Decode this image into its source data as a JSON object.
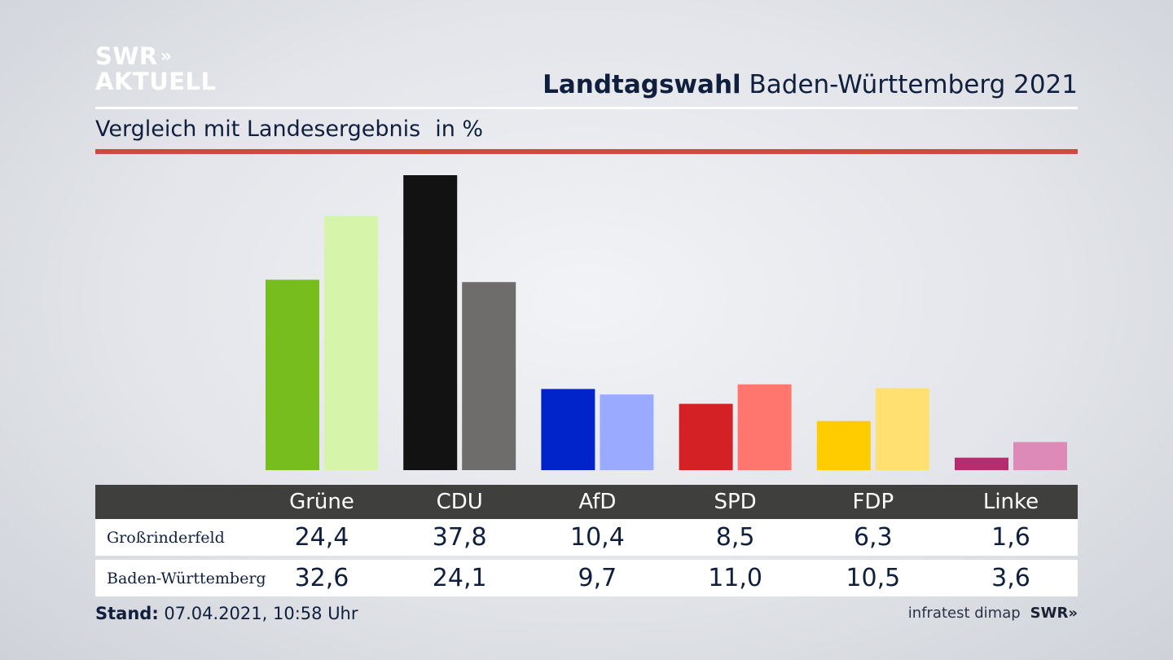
{
  "brand": {
    "line1": "SWR",
    "chevrons": "»",
    "line2": "AKTUELL"
  },
  "header": {
    "title_bold": "Landtagswahl",
    "title_rest": "Baden-Württemberg 2021"
  },
  "subtitle": {
    "text": "Vergleich mit Landesergebnis",
    "unit": "in %"
  },
  "colors": {
    "accent_rule": "#cf4a3c",
    "table_header": "#3f3f3d"
  },
  "chart_data": {
    "type": "bar",
    "categories": [
      "Grüne",
      "CDU",
      "AfD",
      "SPD",
      "FDP",
      "Linke"
    ],
    "series": [
      {
        "name": "Großrinderfeld",
        "values": [
          24.4,
          37.8,
          10.4,
          8.5,
          6.3,
          1.6
        ],
        "colors": [
          "#78bd1e",
          "#121212",
          "#0024c9",
          "#d42125",
          "#ffcc00",
          "#b52d6e"
        ]
      },
      {
        "name": "Baden-Württemberg",
        "values": [
          32.6,
          24.1,
          9.7,
          11.0,
          10.5,
          3.6
        ],
        "colors": [
          "#d6f5aa",
          "#6f6d6b",
          "#9aabff",
          "#ff766e",
          "#ffe070",
          "#de8ab8"
        ]
      }
    ],
    "ylim": [
      0,
      37.8
    ],
    "grid": false
  },
  "table": {
    "rows": [
      {
        "label": "Großrinderfeld",
        "values": [
          "24,4",
          "37,8",
          "10,4",
          "8,5",
          "6,3",
          "1,6"
        ]
      },
      {
        "label": "Baden-Württemberg",
        "values": [
          "32,6",
          "24,1",
          "9,7",
          "11,0",
          "10,5",
          "3,6"
        ]
      }
    ]
  },
  "footer": {
    "stand_label": "Stand:",
    "stand_value": "07.04.2021, 10:58 Uhr"
  },
  "source": {
    "institute": "infratest dimap",
    "brand": "SWR",
    "chevrons": "»"
  }
}
